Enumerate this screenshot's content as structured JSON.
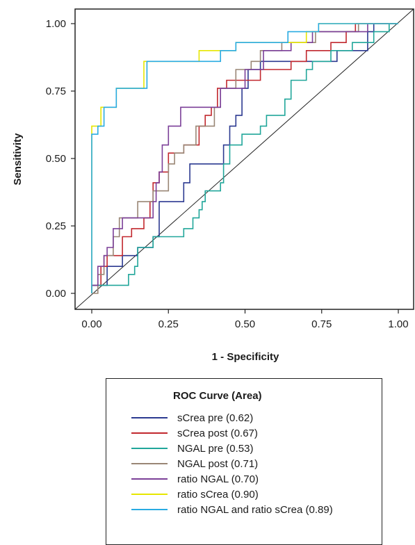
{
  "chart_data": {
    "type": "line",
    "xlabel": "1 - Specificity",
    "ylabel": "Sensitivity",
    "xlim": [
      0,
      1
    ],
    "ylim": [
      0,
      1
    ],
    "xticks": [
      "0.00",
      "0.25",
      "0.50",
      "0.75",
      "1.00"
    ],
    "yticks": [
      "0.00",
      "0.25",
      "0.50",
      "0.75",
      "1.00"
    ],
    "diagonal_reference": true,
    "legend": {
      "title": "ROC Curve (Area)",
      "placement": "below"
    },
    "series": [
      {
        "name": "sCrea pre (0.62)",
        "color": "#2b3990",
        "points": [
          [
            0,
            0
          ],
          [
            0,
            0.03
          ],
          [
            0.05,
            0.03
          ],
          [
            0.05,
            0.1
          ],
          [
            0.1,
            0.1
          ],
          [
            0.1,
            0.14
          ],
          [
            0.15,
            0.14
          ],
          [
            0.15,
            0.17
          ],
          [
            0.2,
            0.17
          ],
          [
            0.2,
            0.21
          ],
          [
            0.22,
            0.21
          ],
          [
            0.22,
            0.34
          ],
          [
            0.3,
            0.34
          ],
          [
            0.3,
            0.41
          ],
          [
            0.32,
            0.41
          ],
          [
            0.32,
            0.48
          ],
          [
            0.43,
            0.48
          ],
          [
            0.43,
            0.55
          ],
          [
            0.45,
            0.55
          ],
          [
            0.45,
            0.62
          ],
          [
            0.47,
            0.62
          ],
          [
            0.47,
            0.66
          ],
          [
            0.49,
            0.66
          ],
          [
            0.49,
            0.76
          ],
          [
            0.51,
            0.76
          ],
          [
            0.51,
            0.83
          ],
          [
            0.55,
            0.83
          ],
          [
            0.55,
            0.86
          ],
          [
            0.8,
            0.86
          ],
          [
            0.8,
            0.9
          ],
          [
            0.9,
            0.9
          ],
          [
            0.9,
            0.97
          ],
          [
            0.92,
            0.97
          ],
          [
            0.92,
            1
          ],
          [
            1,
            1
          ]
        ]
      },
      {
        "name": "sCrea post (0.67)",
        "color": "#c1272d",
        "points": [
          [
            0,
            0
          ],
          [
            0,
            0.03
          ],
          [
            0.03,
            0.03
          ],
          [
            0.03,
            0.1
          ],
          [
            0.05,
            0.1
          ],
          [
            0.05,
            0.14
          ],
          [
            0.1,
            0.14
          ],
          [
            0.1,
            0.21
          ],
          [
            0.13,
            0.21
          ],
          [
            0.13,
            0.24
          ],
          [
            0.17,
            0.24
          ],
          [
            0.17,
            0.28
          ],
          [
            0.19,
            0.28
          ],
          [
            0.19,
            0.34
          ],
          [
            0.2,
            0.34
          ],
          [
            0.2,
            0.41
          ],
          [
            0.22,
            0.41
          ],
          [
            0.22,
            0.45
          ],
          [
            0.25,
            0.45
          ],
          [
            0.25,
            0.52
          ],
          [
            0.3,
            0.52
          ],
          [
            0.3,
            0.55
          ],
          [
            0.35,
            0.55
          ],
          [
            0.35,
            0.62
          ],
          [
            0.37,
            0.62
          ],
          [
            0.37,
            0.66
          ],
          [
            0.39,
            0.66
          ],
          [
            0.39,
            0.69
          ],
          [
            0.41,
            0.69
          ],
          [
            0.41,
            0.76
          ],
          [
            0.44,
            0.76
          ],
          [
            0.44,
            0.79
          ],
          [
            0.55,
            0.79
          ],
          [
            0.55,
            0.83
          ],
          [
            0.65,
            0.83
          ],
          [
            0.65,
            0.86
          ],
          [
            0.7,
            0.86
          ],
          [
            0.7,
            0.9
          ],
          [
            0.78,
            0.9
          ],
          [
            0.78,
            0.93
          ],
          [
            0.83,
            0.93
          ],
          [
            0.83,
            0.97
          ],
          [
            0.86,
            0.97
          ],
          [
            0.86,
            1
          ],
          [
            1,
            1
          ]
        ]
      },
      {
        "name": "NGAL pre (0.53)",
        "color": "#20a69a",
        "points": [
          [
            0,
            0
          ],
          [
            0,
            0.03
          ],
          [
            0.12,
            0.03
          ],
          [
            0.12,
            0.07
          ],
          [
            0.14,
            0.07
          ],
          [
            0.14,
            0.1
          ],
          [
            0.15,
            0.1
          ],
          [
            0.15,
            0.17
          ],
          [
            0.2,
            0.17
          ],
          [
            0.2,
            0.21
          ],
          [
            0.3,
            0.21
          ],
          [
            0.3,
            0.24
          ],
          [
            0.33,
            0.24
          ],
          [
            0.33,
            0.28
          ],
          [
            0.35,
            0.28
          ],
          [
            0.35,
            0.31
          ],
          [
            0.36,
            0.31
          ],
          [
            0.36,
            0.34
          ],
          [
            0.37,
            0.34
          ],
          [
            0.37,
            0.38
          ],
          [
            0.42,
            0.38
          ],
          [
            0.42,
            0.41
          ],
          [
            0.43,
            0.41
          ],
          [
            0.43,
            0.48
          ],
          [
            0.45,
            0.48
          ],
          [
            0.45,
            0.55
          ],
          [
            0.49,
            0.55
          ],
          [
            0.49,
            0.59
          ],
          [
            0.55,
            0.59
          ],
          [
            0.55,
            0.62
          ],
          [
            0.57,
            0.62
          ],
          [
            0.57,
            0.66
          ],
          [
            0.63,
            0.66
          ],
          [
            0.63,
            0.72
          ],
          [
            0.65,
            0.72
          ],
          [
            0.65,
            0.79
          ],
          [
            0.7,
            0.79
          ],
          [
            0.7,
            0.83
          ],
          [
            0.72,
            0.83
          ],
          [
            0.72,
            0.86
          ],
          [
            0.78,
            0.86
          ],
          [
            0.78,
            0.9
          ],
          [
            0.85,
            0.9
          ],
          [
            0.85,
            0.93
          ],
          [
            0.92,
            0.93
          ],
          [
            0.92,
            0.97
          ],
          [
            0.97,
            0.97
          ],
          [
            0.97,
            1
          ],
          [
            1,
            1
          ]
        ]
      },
      {
        "name": "NGAL post (0.71)",
        "color": "#998675",
        "points": [
          [
            0,
            0
          ],
          [
            0.02,
            0
          ],
          [
            0.02,
            0.07
          ],
          [
            0.04,
            0.07
          ],
          [
            0.04,
            0.14
          ],
          [
            0.07,
            0.14
          ],
          [
            0.07,
            0.21
          ],
          [
            0.09,
            0.21
          ],
          [
            0.09,
            0.28
          ],
          [
            0.15,
            0.28
          ],
          [
            0.15,
            0.34
          ],
          [
            0.2,
            0.34
          ],
          [
            0.2,
            0.38
          ],
          [
            0.25,
            0.38
          ],
          [
            0.25,
            0.48
          ],
          [
            0.27,
            0.48
          ],
          [
            0.27,
            0.52
          ],
          [
            0.3,
            0.52
          ],
          [
            0.3,
            0.55
          ],
          [
            0.34,
            0.55
          ],
          [
            0.34,
            0.62
          ],
          [
            0.4,
            0.62
          ],
          [
            0.4,
            0.69
          ],
          [
            0.42,
            0.69
          ],
          [
            0.42,
            0.76
          ],
          [
            0.47,
            0.76
          ],
          [
            0.47,
            0.83
          ],
          [
            0.52,
            0.83
          ],
          [
            0.52,
            0.86
          ],
          [
            0.55,
            0.86
          ],
          [
            0.55,
            0.9
          ],
          [
            0.62,
            0.9
          ],
          [
            0.62,
            0.93
          ],
          [
            0.73,
            0.93
          ],
          [
            0.73,
            0.97
          ],
          [
            0.87,
            0.97
          ],
          [
            0.87,
            1
          ],
          [
            1,
            1
          ]
        ]
      },
      {
        "name": "ratio NGAL (0.70)",
        "color": "#7b3f98",
        "points": [
          [
            0,
            0
          ],
          [
            0,
            0.03
          ],
          [
            0.02,
            0.03
          ],
          [
            0.02,
            0.1
          ],
          [
            0.04,
            0.1
          ],
          [
            0.04,
            0.14
          ],
          [
            0.05,
            0.14
          ],
          [
            0.05,
            0.17
          ],
          [
            0.07,
            0.17
          ],
          [
            0.07,
            0.24
          ],
          [
            0.1,
            0.24
          ],
          [
            0.1,
            0.28
          ],
          [
            0.2,
            0.28
          ],
          [
            0.2,
            0.34
          ],
          [
            0.21,
            0.34
          ],
          [
            0.21,
            0.41
          ],
          [
            0.22,
            0.41
          ],
          [
            0.22,
            0.45
          ],
          [
            0.23,
            0.45
          ],
          [
            0.23,
            0.55
          ],
          [
            0.25,
            0.55
          ],
          [
            0.25,
            0.62
          ],
          [
            0.29,
            0.62
          ],
          [
            0.29,
            0.69
          ],
          [
            0.42,
            0.69
          ],
          [
            0.42,
            0.76
          ],
          [
            0.5,
            0.76
          ],
          [
            0.5,
            0.83
          ],
          [
            0.56,
            0.83
          ],
          [
            0.56,
            0.9
          ],
          [
            0.65,
            0.9
          ],
          [
            0.65,
            0.93
          ],
          [
            0.72,
            0.93
          ],
          [
            0.72,
            0.97
          ],
          [
            0.9,
            0.97
          ],
          [
            0.9,
            1
          ],
          [
            1,
            1
          ]
        ]
      },
      {
        "name": "ratio sCrea (0.90)",
        "color": "#e6e600",
        "points": [
          [
            0,
            0
          ],
          [
            0,
            0.62
          ],
          [
            0.03,
            0.62
          ],
          [
            0.03,
            0.69
          ],
          [
            0.08,
            0.69
          ],
          [
            0.08,
            0.76
          ],
          [
            0.17,
            0.76
          ],
          [
            0.17,
            0.86
          ],
          [
            0.35,
            0.86
          ],
          [
            0.35,
            0.9
          ],
          [
            0.47,
            0.9
          ],
          [
            0.47,
            0.93
          ],
          [
            0.7,
            0.93
          ],
          [
            0.7,
            0.97
          ],
          [
            0.74,
            0.97
          ],
          [
            0.74,
            1
          ],
          [
            1,
            1
          ]
        ]
      },
      {
        "name": "ratio NGAL and ratio sCrea (0.89)",
        "color": "#29abe2",
        "points": [
          [
            0,
            0
          ],
          [
            0,
            0.59
          ],
          [
            0.02,
            0.59
          ],
          [
            0.02,
            0.62
          ],
          [
            0.04,
            0.62
          ],
          [
            0.04,
            0.69
          ],
          [
            0.08,
            0.69
          ],
          [
            0.08,
            0.76
          ],
          [
            0.18,
            0.76
          ],
          [
            0.18,
            0.86
          ],
          [
            0.42,
            0.86
          ],
          [
            0.42,
            0.9
          ],
          [
            0.47,
            0.9
          ],
          [
            0.47,
            0.93
          ],
          [
            0.64,
            0.93
          ],
          [
            0.64,
            0.97
          ],
          [
            0.74,
            0.97
          ],
          [
            0.74,
            1
          ],
          [
            1,
            1
          ]
        ]
      }
    ]
  }
}
